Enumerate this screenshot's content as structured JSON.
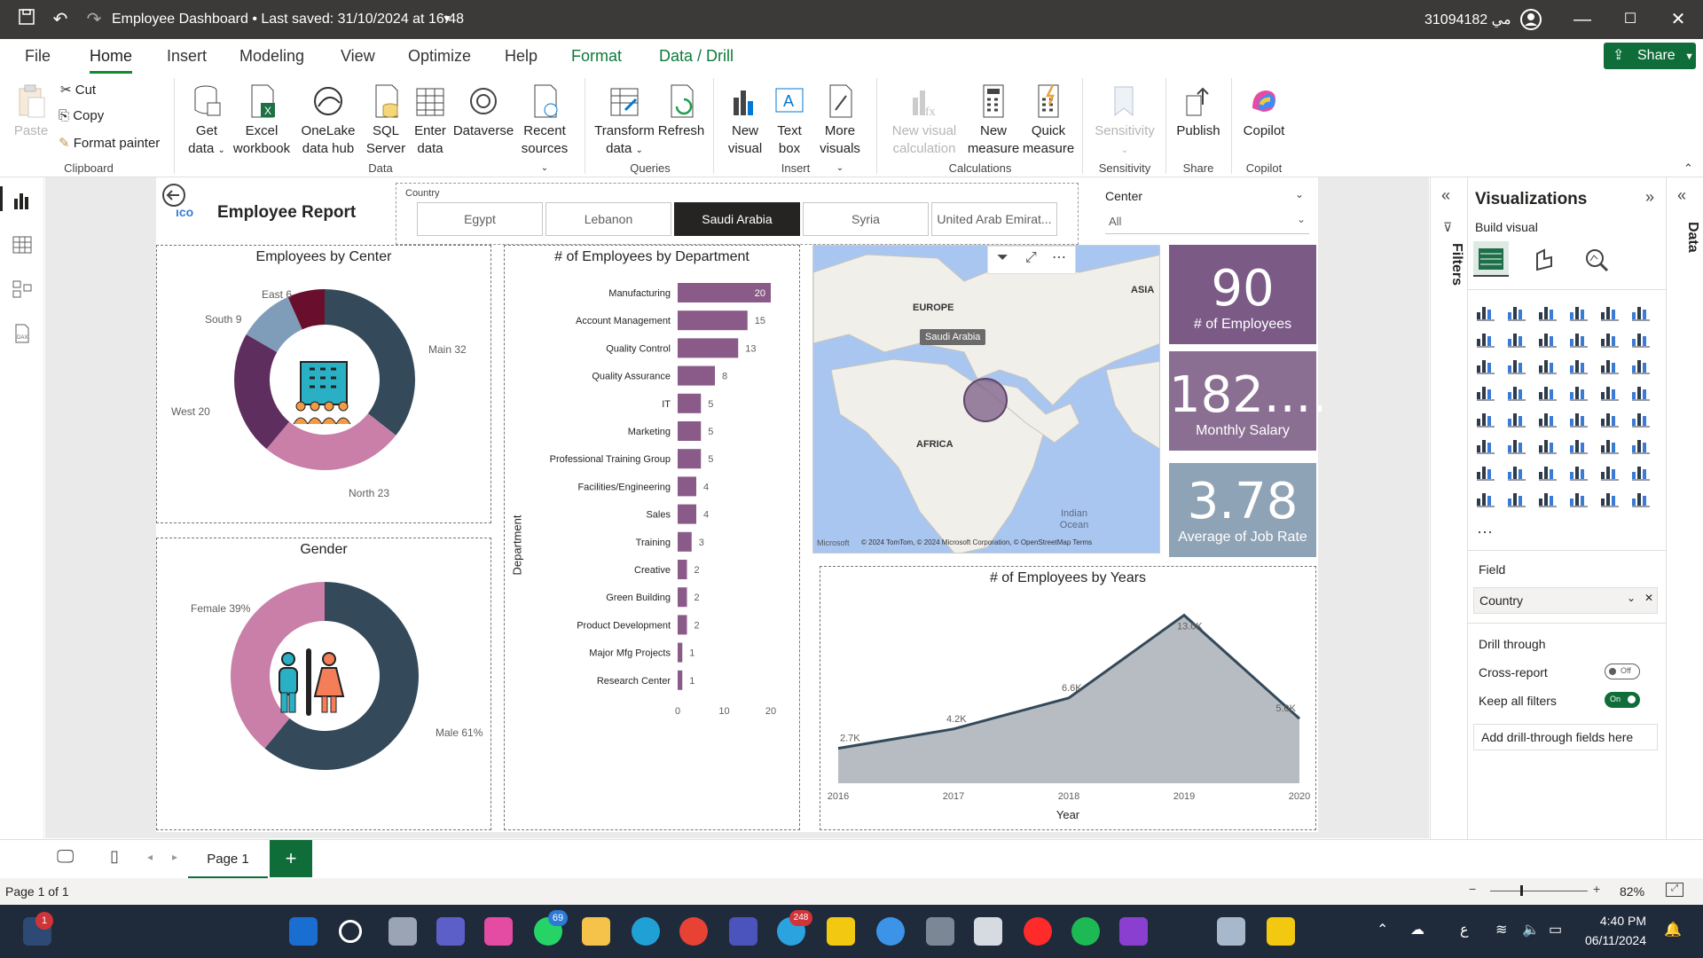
{
  "titlebar": {
    "document_title": "Employee Dashboard  •  Last saved: 31/10/2024 at 16:48",
    "user": "31094182 مي"
  },
  "menu": {
    "tabs": [
      "File",
      "Home",
      "Insert",
      "Modeling",
      "View",
      "Optimize",
      "Help",
      "Format",
      "Data / Drill"
    ],
    "share": "Share"
  },
  "ribbon": {
    "clipboard": {
      "paste": "Paste",
      "cut": "Cut",
      "copy": "Copy",
      "format_painter": "Format painter",
      "group": "Clipboard"
    },
    "data": {
      "get_data": "Get data",
      "excel": "Excel workbook",
      "onelake": "OneLake data hub",
      "sql": "SQL Server",
      "enter": "Enter data",
      "dataverse": "Dataverse",
      "recent": "Recent sources",
      "group": "Data"
    },
    "queries": {
      "transform": "Transform data",
      "refresh": "Refresh",
      "group": "Queries"
    },
    "insert": {
      "new_visual": "New visual",
      "text_box": "Text box",
      "more_visuals": "More visuals",
      "group": "Insert"
    },
    "calculations": {
      "new_visual_calc": "New visual calculation",
      "new_measure": "New measure",
      "quick_measure": "Quick measure",
      "group": "Calculations"
    },
    "sensitivity": {
      "label": "Sensitivity",
      "group": "Sensitivity"
    },
    "share": {
      "publish": "Publish",
      "group": "Share"
    },
    "copilot": {
      "label": "Copilot",
      "group": "Copilot"
    }
  },
  "report": {
    "title": "Employee Report",
    "country_slicer": {
      "label": "Country",
      "options": [
        "Egypt",
        "Lebanon",
        "Saudi Arabia",
        "Syria",
        "United Arab Emirat..."
      ],
      "selected": "Saudi Arabia"
    },
    "center_slicer": {
      "label": "Center",
      "value": "All"
    },
    "center_donut": {
      "title": "Employees by Center",
      "labels": [
        "East 6",
        "South 9",
        "West 20",
        "North 23",
        "Main 32"
      ]
    },
    "gender_donut": {
      "title": "Gender",
      "labels": [
        "Female 39%",
        "Male 61%"
      ]
    },
    "map": {
      "tooltip": "Saudi Arabia",
      "labels": [
        "EUROPE",
        "ASIA",
        "AFRICA",
        "Indian Ocean"
      ],
      "copyright": "© 2024 TomTom, © 2024 Microsoft Corporation, © OpenStreetMap  Terms",
      "brand": "Microsoft"
    },
    "kpis": [
      {
        "value": "90",
        "label": "# of Employees",
        "color": "#7b5a86"
      },
      {
        "value": "182....",
        "label": "Monthly Salary",
        "color": "#8a6f92"
      },
      {
        "value": "3.78",
        "label": "Average of Job Rate",
        "color": "#8fa3b6"
      }
    ]
  },
  "chart_data": [
    {
      "type": "pie",
      "title": "Employees by Center",
      "categories": [
        "Main",
        "North",
        "West",
        "South",
        "East"
      ],
      "values": [
        32,
        23,
        20,
        9,
        6
      ],
      "colors": [
        "#34495a",
        "#c97fa8",
        "#5e2e5e",
        "#7f9db9",
        "#6a0e2e"
      ]
    },
    {
      "type": "pie",
      "title": "Gender",
      "categories": [
        "Male",
        "Female"
      ],
      "values": [
        61,
        39
      ],
      "colors": [
        "#34495a",
        "#c97fa8"
      ]
    },
    {
      "type": "bar",
      "title": "# of Employees by Department",
      "ylabel": "Department",
      "categories": [
        "Manufacturing",
        "Account Management",
        "Quality Control",
        "Quality Assurance",
        "IT",
        "Marketing",
        "Professional Training Group",
        "Facilities/Engineering",
        "Sales",
        "Training",
        "Creative",
        "Green Building",
        "Product Development",
        "Major Mfg Projects",
        "Research Center"
      ],
      "values": [
        20,
        15,
        13,
        8,
        5,
        5,
        5,
        4,
        4,
        3,
        2,
        2,
        2,
        1,
        1
      ],
      "xticks": [
        "0",
        "10",
        "20"
      ],
      "xlim": [
        0,
        20
      ],
      "color": "#8a5a88"
    },
    {
      "type": "area",
      "title": "# of Employees by Years",
      "xlabel": "Year",
      "x": [
        "2016",
        "2017",
        "2018",
        "2019",
        "2020"
      ],
      "values": [
        2.7,
        4.2,
        6.6,
        13.0,
        5.0
      ],
      "data_labels": [
        "2.7K",
        "4.2K",
        "6.6K",
        "13.0K",
        "5.0K"
      ],
      "ylim": [
        0,
        14
      ],
      "fill": "#b7bcc2",
      "line": "#34495a"
    }
  ],
  "filters_pane": {
    "label": "Filters"
  },
  "viz_pane": {
    "title": "Visualizations",
    "build": "Build visual",
    "field_header": "Field",
    "field_value": "Country",
    "drill_header": "Drill through",
    "cross_report": "Cross-report",
    "cross_state": "Off",
    "keep_filters": "Keep all filters",
    "keep_state": "On",
    "add_drill": "Add drill-through fields here"
  },
  "data_pane": {
    "label": "Data"
  },
  "pagebar": {
    "page": "Page 1"
  },
  "status": {
    "page_of": "Page 1 of 1",
    "zoom": "82%"
  },
  "taskbar": {
    "time": "4:40 PM",
    "date": "06/11/2024",
    "badge_whatsapp": "69",
    "badge_app": "1",
    "badge_telegram": "248"
  }
}
